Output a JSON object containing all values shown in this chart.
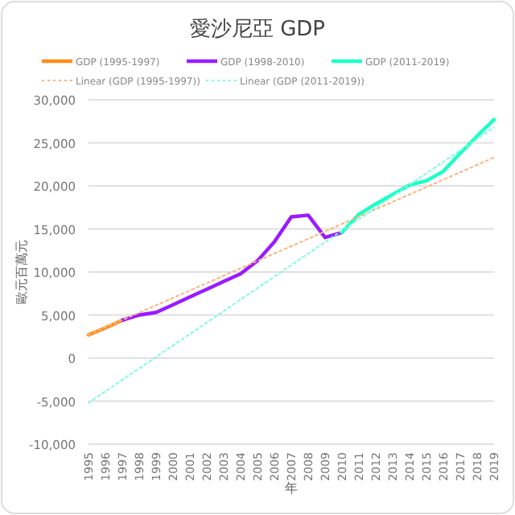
{
  "chart_data": {
    "type": "line",
    "title": "愛沙尼亞 GDP",
    "xlabel": "年",
    "ylabel": "歐元百萬元",
    "series": [
      {
        "name": "GDP (1995-1997)",
        "color": "#ff8c1a",
        "x": [
          1995,
          1996,
          1997
        ],
        "values": [
          2700,
          3500,
          4400
        ]
      },
      {
        "name": "GDP (1998-2010)",
        "color": "#9b1aff",
        "x": [
          1997,
          1998,
          1999,
          2000,
          2001,
          2002,
          2003,
          2004,
          2005,
          2006,
          2007,
          2008,
          2009,
          2010
        ],
        "values": [
          4400,
          5000,
          5300,
          6200,
          7100,
          8000,
          8900,
          9800,
          11300,
          13500,
          16400,
          16600,
          14000,
          14600
        ]
      },
      {
        "name": "GDP (2011-2019)",
        "color": "#1affc6",
        "x": [
          2010,
          2011,
          2012,
          2013,
          2014,
          2015,
          2016,
          2017,
          2018,
          2019
        ],
        "values": [
          14600,
          16700,
          17900,
          19000,
          20100,
          20600,
          21700,
          23800,
          25800,
          27700
        ]
      },
      {
        "name": "Linear (GDP (1995-1997))",
        "color": "#ffb27a",
        "line_style": "dotted",
        "x": [
          1995,
          2019
        ],
        "values": [
          2700,
          23300
        ]
      },
      {
        "name": "Linear (GDP (2011-2019))",
        "color": "#7affdc",
        "line_style": "dotted",
        "x": [
          1995,
          2019
        ],
        "values": [
          -5200,
          26800
        ]
      }
    ],
    "xlim": [
      1995,
      2019
    ],
    "xticks": [
      1995,
      1996,
      1997,
      1998,
      1999,
      2000,
      2001,
      2002,
      2003,
      2004,
      2005,
      2006,
      2007,
      2008,
      2009,
      2010,
      2011,
      2012,
      2013,
      2014,
      2015,
      2016,
      2017,
      2018,
      2019
    ],
    "ylim": [
      -10000,
      30000
    ],
    "yticks": [
      {
        "value": -10000,
        "label": "-10,000"
      },
      {
        "value": -5000,
        "label": "-5,000"
      },
      0,
      {
        "value": 5000,
        "label": "5,000"
      },
      {
        "value": 10000,
        "label": "10,000"
      },
      {
        "value": 15000,
        "label": "15,000"
      },
      {
        "value": 20000,
        "label": "20,000"
      },
      {
        "value": 25000,
        "label": "25,000"
      },
      {
        "value": 30000,
        "label": "30,000"
      }
    ],
    "grid": "y",
    "legend": "top",
    "line_style": "solid",
    "marker": "none"
  }
}
